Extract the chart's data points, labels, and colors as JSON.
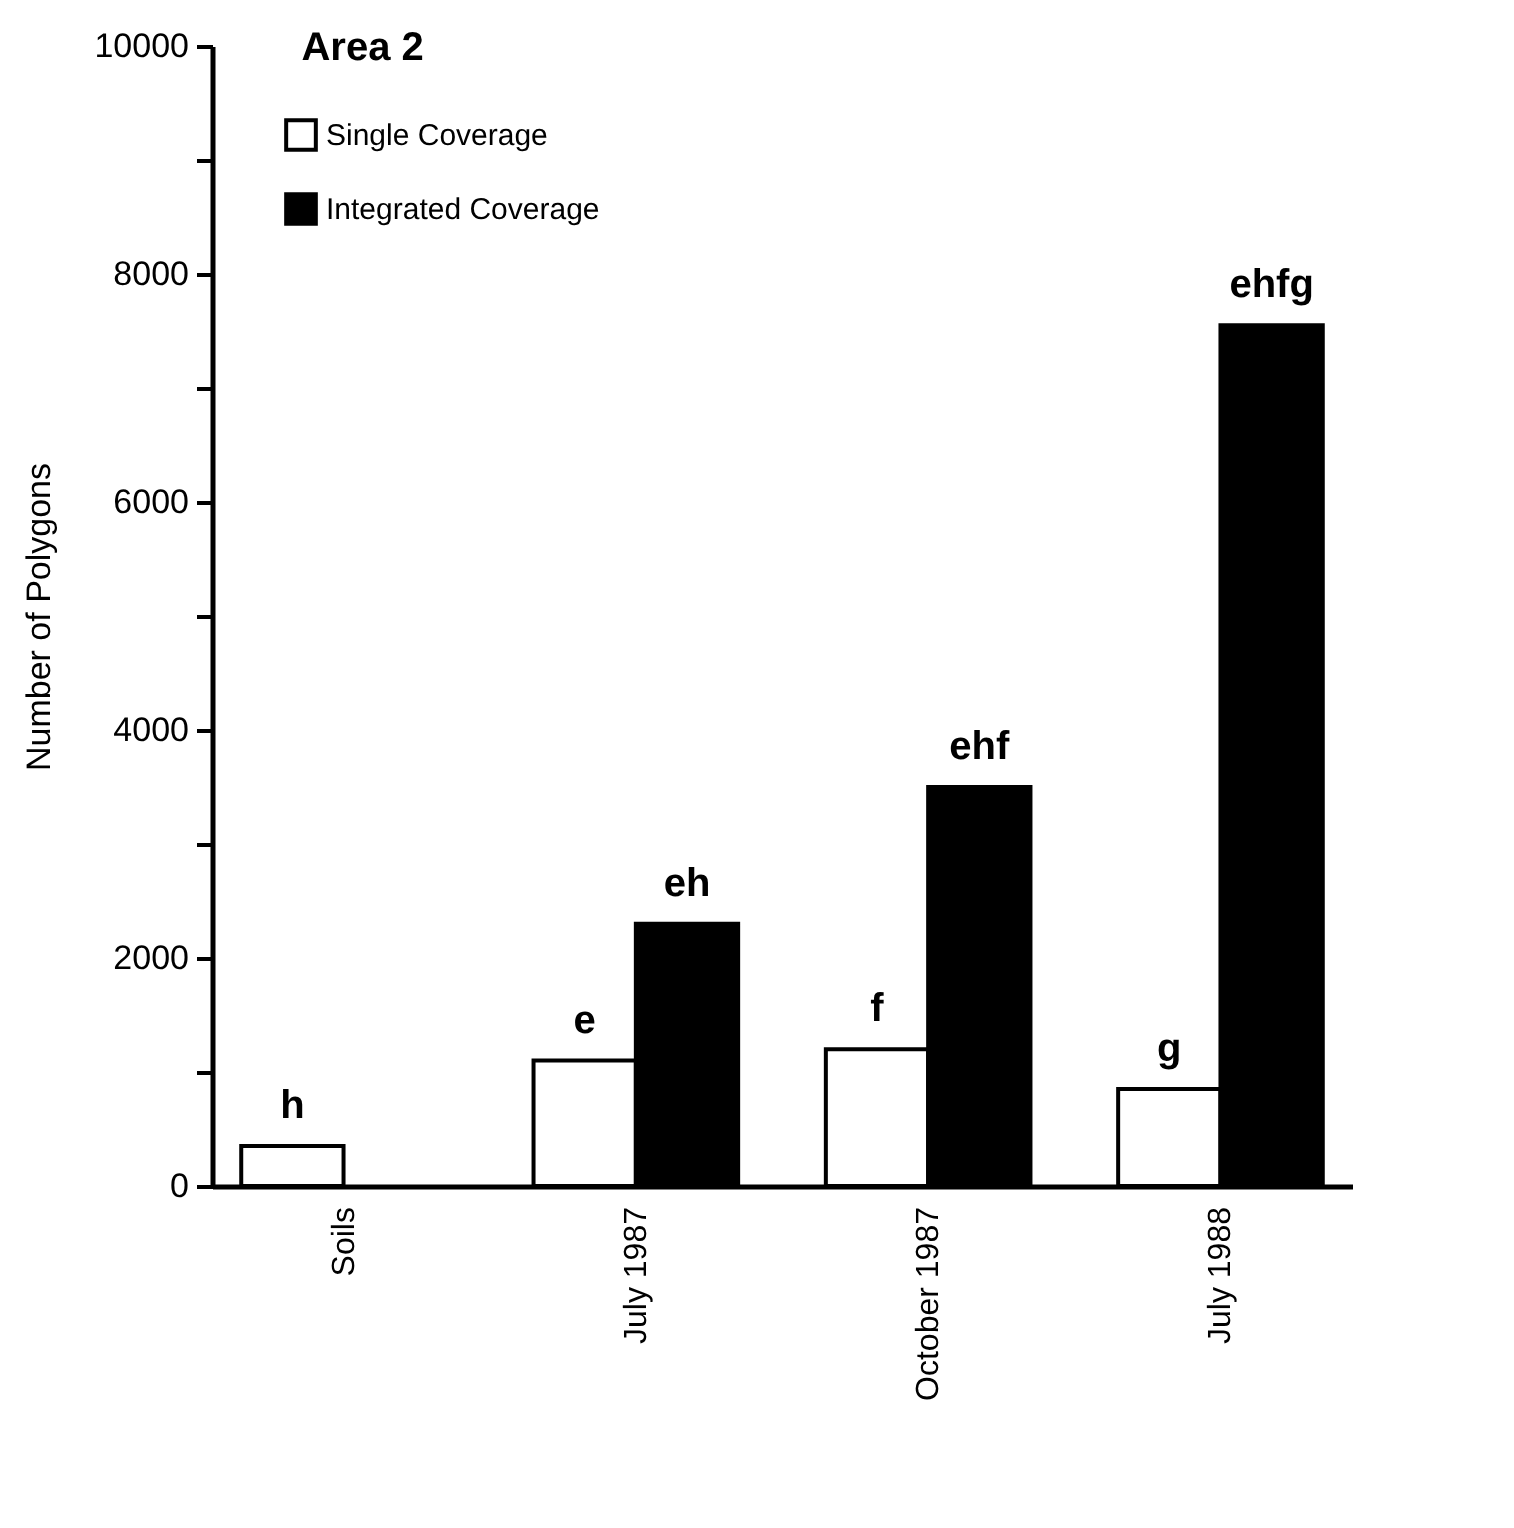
{
  "chart_data": {
    "type": "bar",
    "title": "Area  2",
    "ylabel": "Number of Polygons",
    "categories": [
      "Soils",
      "July 1987",
      "October 1987",
      "July 1988"
    ],
    "series": [
      {
        "name": "Single Coverage",
        "color": "#ffffff",
        "values": [
          350,
          1100,
          1200,
          850
        ],
        "value_labels": [
          "h",
          "e",
          "f",
          "g"
        ]
      },
      {
        "name": "Integrated Coverage",
        "color": "#000000",
        "values": [
          null,
          2300,
          3500,
          7550
        ],
        "value_labels": [
          null,
          "eh",
          "ehf",
          "ehfg"
        ]
      }
    ],
    "ylim": [
      0,
      10000
    ],
    "yticks": [
      0,
      {
        "value": 1000,
        "label": null
      },
      2000,
      {
        "value": 3000,
        "label": null
      },
      4000,
      {
        "value": 5000,
        "label": null
      },
      6000,
      {
        "value": 7000,
        "label": null
      },
      8000,
      {
        "value": 9000,
        "label": null
      },
      10000
    ],
    "grid": false,
    "legend": "top left"
  }
}
